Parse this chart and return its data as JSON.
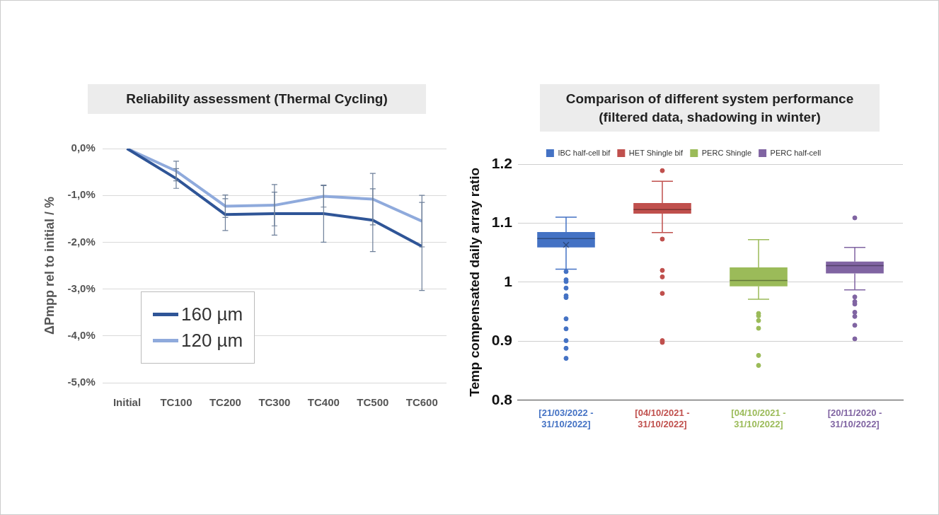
{
  "chart_data": [
    {
      "type": "line",
      "title": "Reliability assessment (Thermal Cycling)",
      "ylabel": "ΔPmpp rel to initial / %",
      "categories": [
        "Initial",
        "TC100",
        "TC200",
        "TC300",
        "TC400",
        "TC500",
        "TC600"
      ],
      "series": [
        {
          "name": "160 µm",
          "color": "#2f5597",
          "values": [
            0,
            -0.64,
            -1.41,
            -1.39,
            -1.39,
            -1.53,
            -2.09
          ],
          "errors": [
            null,
            0.21,
            0.34,
            0.46,
            0.61,
            0.67,
            0.94
          ]
        },
        {
          "name": "120 µm",
          "color": "#8faadc",
          "values": [
            0,
            -0.48,
            -1.23,
            -1.21,
            -1.02,
            -1.08,
            -1.55
          ],
          "errors": [
            null,
            0.21,
            0.24,
            0.44,
            0.23,
            0.55,
            0.55
          ]
        }
      ],
      "ylim": [
        -5,
        0
      ],
      "yticks": [
        {
          "value": -5,
          "label": "-5,0%"
        },
        {
          "value": -4,
          "label": "-4,0%"
        },
        {
          "value": -3,
          "label": "-3,0%"
        },
        {
          "value": -2,
          "label": "-2,0%"
        },
        {
          "value": -1,
          "label": "-1,0%"
        },
        {
          "value": 0,
          "label": "0,0%"
        }
      ],
      "grid": "y",
      "legend": "bottom left",
      "marker": "none"
    },
    {
      "type": "box",
      "title": "Comparison of different system performance (filtered data, shadowing in winter)",
      "ylabel": "Temp compensated daily array ratio",
      "categories": [
        "[21/03/2022 - 31/10/2022]",
        "[04/10/2021 - 31/10/2022]",
        "[04/10/2021 - 31/10/2022]",
        "[20/11/2020 - 31/10/2022]"
      ],
      "series": [
        {
          "name": "IBC half-cell bif",
          "color": "#4472c4",
          "boxes": [
            {
              "low": 1.022,
              "q1": 1.059,
              "median": 1.074,
              "q3": 1.085,
              "high": 1.11,
              "mean": 1.063,
              "outliers": [
                1.018,
                1.004,
                1.001,
                0.99,
                0.977,
                0.974,
                0.938,
                0.921,
                0.901,
                0.888,
                0.871
              ]
            },
            null,
            null,
            null
          ]
        },
        {
          "name": "HET Shingle bif",
          "color": "#c0504d",
          "boxes": [
            null,
            {
              "low": 1.084,
              "q1": 1.116,
              "median": 1.123,
              "q3": 1.134,
              "high": 1.171,
              "outliers": [
                1.189,
                1.073,
                1.02,
                1.009,
                0.981,
                0.901,
                0.898
              ]
            },
            null,
            null
          ]
        },
        {
          "name": "PERC Shingle",
          "color": "#9bbb59",
          "boxes": [
            null,
            null,
            {
              "low": 0.971,
              "q1": 0.993,
              "median": 1.003,
              "q3": 1.025,
              "high": 1.072,
              "outliers": [
                0.947,
                0.943,
                0.935,
                0.922,
                0.876,
                0.859
              ]
            },
            null
          ]
        },
        {
          "name": "PERC half-cell",
          "color": "#8064a2",
          "boxes": [
            null,
            null,
            null,
            {
              "low": 0.987,
              "q1": 1.015,
              "median": 1.028,
              "q3": 1.035,
              "high": 1.059,
              "outliers": [
                1.109,
                0.975,
                0.967,
                0.963,
                0.949,
                0.942,
                0.927,
                0.904
              ]
            }
          ]
        }
      ],
      "ylim": [
        0.8,
        1.2
      ],
      "yticks": [
        0.8,
        0.9,
        1,
        1.1,
        1.2
      ],
      "grid": "y",
      "legend": "top"
    }
  ]
}
